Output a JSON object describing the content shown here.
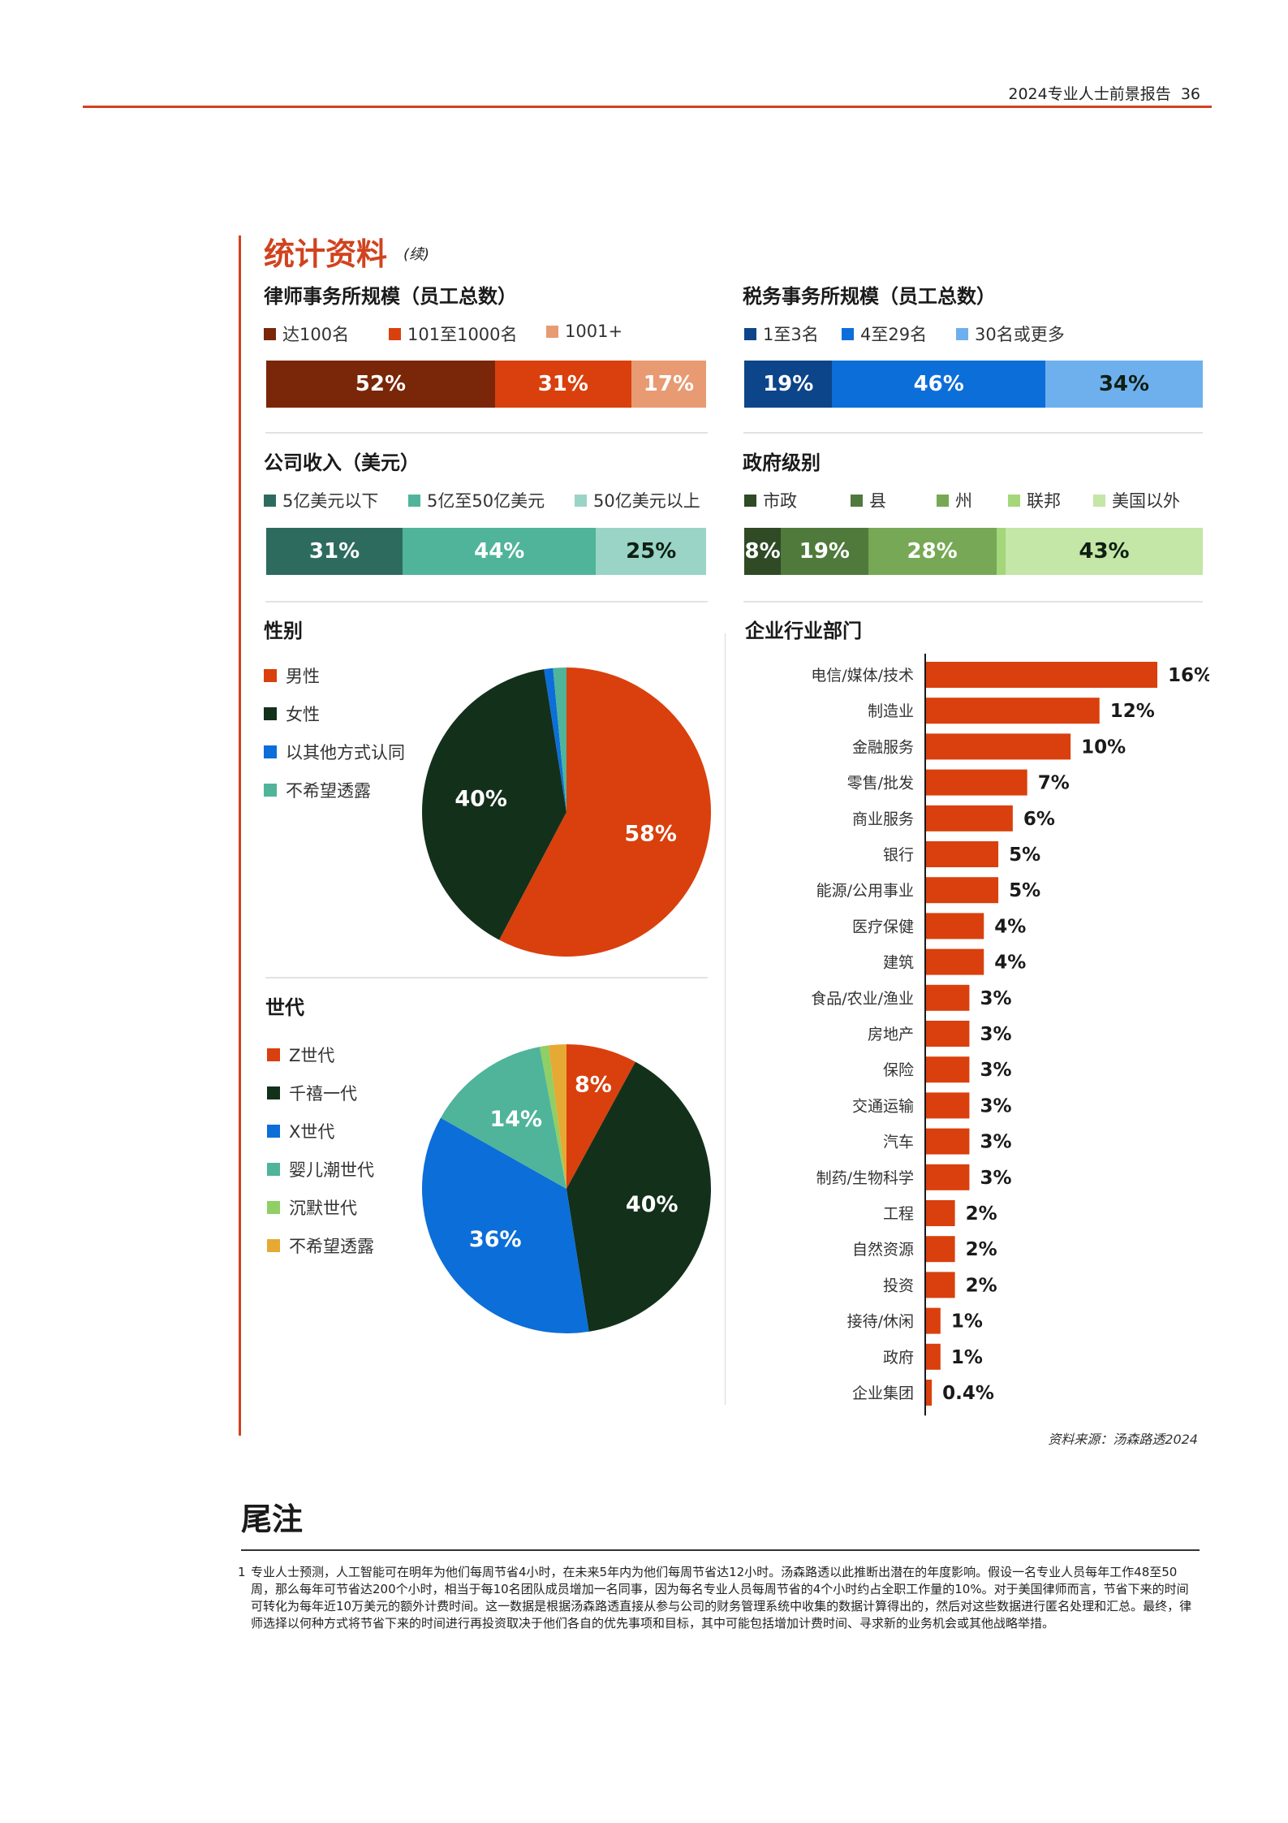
{
  "header": {
    "title": "2024专业人士前景报告",
    "page_number": "36"
  },
  "section": {
    "title": "统计资料",
    "continued": "(续)"
  },
  "colors": {
    "accent": "#d0431f",
    "law_firm": [
      "#7a2608",
      "#d9400d",
      "#e89a72"
    ],
    "tax_firm": [
      "#0c4589",
      "#0c6ed8",
      "#6eb0ee"
    ],
    "revenue": [
      "#2e6b5f",
      "#4fb49a",
      "#99d4c6"
    ],
    "gov": [
      "#2f4a25",
      "#4f7a3c",
      "#76a855",
      "#a4d67a",
      "#c4e6a6"
    ],
    "gender": [
      "#d9400d",
      "#13301b",
      "#0c6ed8",
      "#4fb49a"
    ],
    "generation": [
      "#d9400d",
      "#13301b",
      "#0c6ed8",
      "#4fb49a",
      "#8fcf65",
      "#e6a934"
    ],
    "industry": "#d9400d"
  },
  "chart_data": [
    {
      "id": "law_firm_size",
      "type": "bar",
      "stacked": true,
      "title": "律师事务所规模（员工总数）",
      "series": [
        {
          "name": "达100名",
          "value": 52,
          "label": "52%"
        },
        {
          "name": "101至1000名",
          "value": 31,
          "label": "31%"
        },
        {
          "name": "1001+",
          "value": 17,
          "label": "17%"
        }
      ]
    },
    {
      "id": "tax_firm_size",
      "type": "bar",
      "stacked": true,
      "title": "税务事务所规模（员工总数）",
      "series": [
        {
          "name": "1至3名",
          "value": 19,
          "label": "19%"
        },
        {
          "name": "4至29名",
          "value": 46,
          "label": "46%"
        },
        {
          "name": "30名或更多",
          "value": 34,
          "label": "34%"
        }
      ]
    },
    {
      "id": "company_revenue",
      "type": "bar",
      "stacked": true,
      "title": "公司收入（美元）",
      "series": [
        {
          "name": "5亿美元以下",
          "value": 31,
          "label": "31%"
        },
        {
          "name": "5亿至50亿美元",
          "value": 44,
          "label": "44%"
        },
        {
          "name": "50亿美元以上",
          "value": 25,
          "label": "25%"
        }
      ]
    },
    {
      "id": "gov_level",
      "type": "bar",
      "stacked": true,
      "title": "政府级别",
      "series": [
        {
          "name": "市政",
          "value": 8,
          "label": "8%"
        },
        {
          "name": "县",
          "value": 19,
          "label": "19%"
        },
        {
          "name": "州",
          "value": 28,
          "label": "28%"
        },
        {
          "name": "联邦",
          "value": 2,
          "label": ""
        },
        {
          "name": "美国以外",
          "value": 43,
          "label": "43%"
        }
      ]
    },
    {
      "id": "gender",
      "type": "pie",
      "title": "性别",
      "series": [
        {
          "name": "男性",
          "value": 58,
          "label": "58%"
        },
        {
          "name": "女性",
          "value": 40,
          "label": "40%"
        },
        {
          "name": "以其他方式认同",
          "value": 1,
          "label": ""
        },
        {
          "name": "不希望透露",
          "value": 1.5,
          "label": ""
        }
      ]
    },
    {
      "id": "generation",
      "type": "pie",
      "title": "世代",
      "series": [
        {
          "name": "Z世代",
          "value": 8,
          "label": "8%"
        },
        {
          "name": "千禧一代",
          "value": 40,
          "label": "40%"
        },
        {
          "name": "X世代",
          "value": 36,
          "label": "36%"
        },
        {
          "name": "婴儿潮世代",
          "value": 14,
          "label": "14%"
        },
        {
          "name": "沉默世代",
          "value": 1,
          "label": ""
        },
        {
          "name": "不希望透露",
          "value": 2,
          "label": ""
        }
      ]
    },
    {
      "id": "industry_sector",
      "type": "bar",
      "orientation": "horizontal",
      "title": "企业行业部门",
      "xlim": [
        0,
        16
      ],
      "categories": [
        "电信/媒体/技术",
        "制造业",
        "金融服务",
        "零售/批发",
        "商业服务",
        "银行",
        "能源/公用事业",
        "医疗保健",
        "建筑",
        "食品/农业/渔业",
        "房地产",
        "保险",
        "交通运输",
        "汽车",
        "制药/生物科学",
        "工程",
        "自然资源",
        "投资",
        "接待/休闲",
        "政府",
        "企业集团"
      ],
      "values": [
        16,
        12,
        10,
        7,
        6,
        5,
        5,
        4,
        4,
        3,
        3,
        3,
        3,
        3,
        3,
        2,
        2,
        2,
        1,
        1,
        0.4
      ],
      "labels": [
        "16%",
        "12%",
        "10%",
        "7%",
        "6%",
        "5%",
        "5%",
        "4%",
        "4%",
        "3%",
        "3%",
        "3%",
        "3%",
        "3%",
        "3%",
        "2%",
        "2%",
        "2%",
        "1%",
        "1%",
        "0.4%"
      ]
    }
  ],
  "source_note": "资料来源：汤森路透2024",
  "endnotes": {
    "title": "尾注",
    "items": [
      {
        "num": "1",
        "text": "专业人士预测，人工智能可在明年为他们每周节省4小时，在未来5年内为他们每周节省达12小时。汤森路透以此推断出潜在的年度影响。假设一名专业人员每年工作48至50周，那么每年可节省达200个小时，相当于每10名团队成员增加一名同事，因为每名专业人员每周节省的4个小时约占全职工作量的10%。对于美国律师而言，节省下来的时间可转化为每年近10万美元的额外计费时间。这一数据是根据汤森路透直接从参与公司的财务管理系统中收集的数据计算得出的，然后对这些数据进行匿名处理和汇总。最终，律师选择以何种方式将节省下来的时间进行再投资取决于他们各自的优先事项和目标，其中可能包括增加计费时间、寻求新的业务机会或其他战略举措。"
      }
    ]
  }
}
